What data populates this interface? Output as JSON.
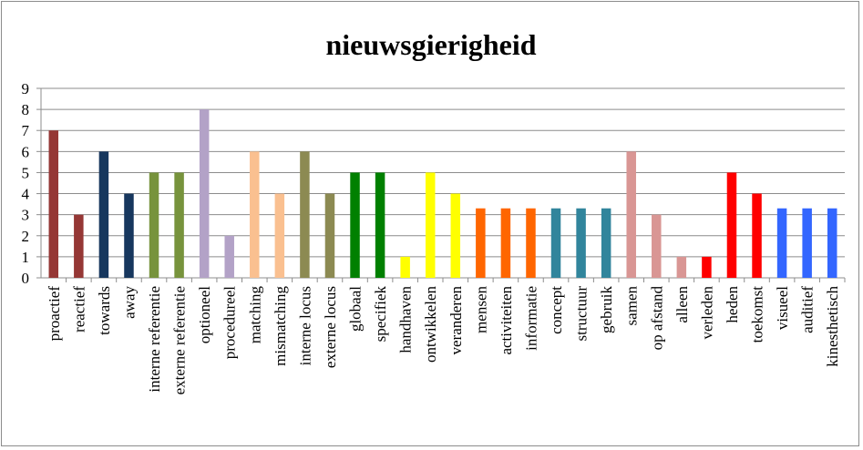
{
  "chart_data": {
    "type": "bar",
    "title": "nieuwsgierigheid",
    "xlabel": "",
    "ylabel": "",
    "ylim": [
      0,
      9
    ],
    "yticks": [
      0,
      1,
      2,
      3,
      4,
      5,
      6,
      7,
      8,
      9
    ],
    "grid": true,
    "legend": "none",
    "categories": [
      "proactief",
      "reactief",
      "towards",
      "away",
      "interne referentie",
      "externe referentie",
      "optioneel",
      "procedureel",
      "matching",
      "mismatching",
      "interne locus",
      "externe locus",
      "globaal",
      "specifiek",
      "handhaven",
      "ontwikkelen",
      "veranderen",
      "mensen",
      "activiteiten",
      "informatie",
      "concept",
      "structuur",
      "gebruik",
      "samen",
      "op afstand",
      "alleen",
      "verleden",
      "heden",
      "toekomst",
      "visueel",
      "auditief",
      "kinesthetisch"
    ],
    "values": [
      7,
      3,
      6,
      4,
      5,
      5,
      8,
      2,
      6,
      4,
      6,
      4,
      5,
      5,
      1,
      5,
      4,
      3.3,
      3.3,
      3.3,
      3.3,
      3.3,
      3.3,
      6,
      3,
      1,
      1,
      5,
      4,
      3.3,
      3.3,
      3.3
    ],
    "colors": [
      "#953735",
      "#953735",
      "#17375e",
      "#17375e",
      "#77933c",
      "#77933c",
      "#b3a2c7",
      "#b3a2c7",
      "#fac090",
      "#fac090",
      "#8c8a52",
      "#8c8a52",
      "#008000",
      "#008000",
      "#ffff00",
      "#ffff00",
      "#ffff00",
      "#ff6600",
      "#ff6600",
      "#ff6600",
      "#31859c",
      "#31859c",
      "#31859c",
      "#d99694",
      "#d99694",
      "#d99694",
      "#ff0000",
      "#ff0000",
      "#ff0000",
      "#3366ff",
      "#3366ff",
      "#3366ff"
    ]
  }
}
